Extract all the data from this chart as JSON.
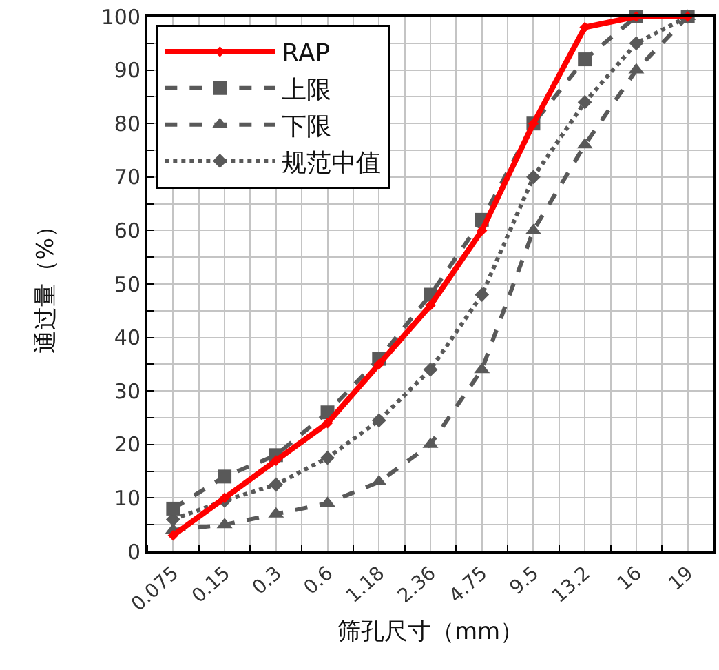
{
  "chart_data": {
    "type": "line",
    "xlabel": "筛孔尺寸（mm）",
    "ylabel": "通过量（%）",
    "categories": [
      "0.075",
      "0.15",
      "0.3",
      "0.6",
      "1.18",
      "2.36",
      "4.75",
      "9.5",
      "13.2",
      "16",
      "19"
    ],
    "series": [
      {
        "name": "RAP",
        "color": "#ff0000",
        "values": [
          3,
          10,
          17,
          24,
          35,
          46,
          60,
          80,
          98,
          100,
          100
        ],
        "marker": "diamond",
        "line_style": "solid"
      },
      {
        "name": "上限",
        "color": "#595959",
        "values": [
          8,
          14,
          18,
          26,
          36,
          48,
          62,
          80,
          92,
          100,
          100
        ],
        "marker": "square",
        "line_style": "dashed"
      },
      {
        "name": "下限",
        "color": "#595959",
        "values": [
          4,
          5,
          7,
          9,
          13,
          20,
          34,
          60,
          76,
          90,
          100
        ],
        "marker": "triangle",
        "line_style": "dashed"
      },
      {
        "name": "规范中值",
        "color": "#595959",
        "values": [
          6,
          9.5,
          12.5,
          17.5,
          24.5,
          34,
          48,
          70,
          84,
          95,
          100
        ],
        "marker": "diamond",
        "line_style": "dotted"
      }
    ],
    "ylim": [
      0,
      100
    ],
    "yticks": [
      0,
      {
        "value": 5,
        "label": null
      },
      10,
      {
        "value": 15,
        "label": null
      },
      20,
      {
        "value": 25,
        "label": null
      },
      30,
      {
        "value": 35,
        "label": null
      },
      40,
      {
        "value": 45,
        "label": null
      },
      50,
      {
        "value": 55,
        "label": null
      },
      60,
      {
        "value": 65,
        "label": null
      },
      70,
      {
        "value": 75,
        "label": null
      },
      80,
      {
        "value": 85,
        "label": null
      },
      90,
      {
        "value": 95,
        "label": null
      },
      100
    ],
    "grid": true,
    "legend": "top left"
  }
}
